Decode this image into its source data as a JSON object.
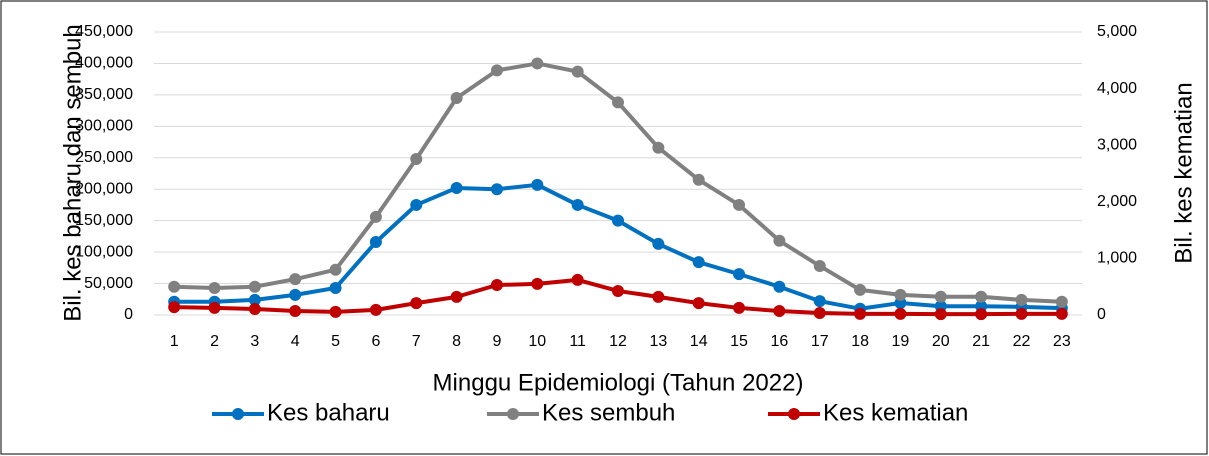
{
  "chart_data": {
    "type": "line",
    "x_label": "Minggu Epidemiologi (Tahun 2022)",
    "y_label": "Bil. kes baharu dan sembuh",
    "y2_label": "Bil. kes kematian",
    "categories": [
      "1",
      "2",
      "3",
      "4",
      "5",
      "6",
      "7",
      "8",
      "9",
      "10",
      "11",
      "12",
      "13",
      "14",
      "15",
      "16",
      "17",
      "18",
      "19",
      "20",
      "21",
      "22",
      "23"
    ],
    "ylim": [
      0,
      450000
    ],
    "yticks": [
      {
        "value": 0,
        "label": "0"
      },
      {
        "value": 50000,
        "label": "50,000"
      },
      {
        "value": 100000,
        "label": "100,000"
      },
      {
        "value": 150000,
        "label": "150,000"
      },
      {
        "value": 200000,
        "label": "200,000"
      },
      {
        "value": 250000,
        "label": "250,000"
      },
      {
        "value": 300000,
        "label": "300,000"
      },
      {
        "value": 350000,
        "label": "350,000"
      },
      {
        "value": 400000,
        "label": "400,000"
      },
      {
        "value": 450000,
        "label": "450,000"
      }
    ],
    "y2lim": [
      0,
      5000
    ],
    "y2ticks": [
      {
        "value": 0,
        "label": "0"
      },
      {
        "value": 1000,
        "label": "1,000"
      },
      {
        "value": 2000,
        "label": "2,000"
      },
      {
        "value": 3000,
        "label": "3,000"
      },
      {
        "value": 4000,
        "label": "4,000"
      },
      {
        "value": 5000,
        "label": "5,000"
      }
    ],
    "grid": true,
    "legend": "bottom",
    "series": [
      {
        "name": "Kes baharu",
        "color": "#0070c0",
        "values": [
          21000,
          21000,
          24000,
          32000,
          43000,
          116000,
          175000,
          202000,
          200000,
          207000,
          175000,
          150000,
          113000,
          84000,
          65000,
          45000,
          22000,
          10000,
          19000,
          14000,
          14000,
          13000,
          11000
        ]
      },
      {
        "name": "Kes sembuh",
        "color": "#808080",
        "values": [
          45000,
          43000,
          45000,
          57000,
          72000,
          156000,
          248000,
          345000,
          389000,
          400000,
          387000,
          338000,
          266000,
          215000,
          175000,
          118000,
          78000,
          40000,
          32000,
          29000,
          29000,
          24000,
          21000
        ]
      },
      {
        "name": "Kes kematian",
        "color": "#c00000",
        "axis": "y2",
        "values": [
          140,
          125,
          105,
          70,
          55,
          90,
          210,
          320,
          530,
          550,
          620,
          425,
          320,
          210,
          125,
          70,
          35,
          20,
          20,
          15,
          15,
          20,
          20
        ]
      }
    ]
  }
}
